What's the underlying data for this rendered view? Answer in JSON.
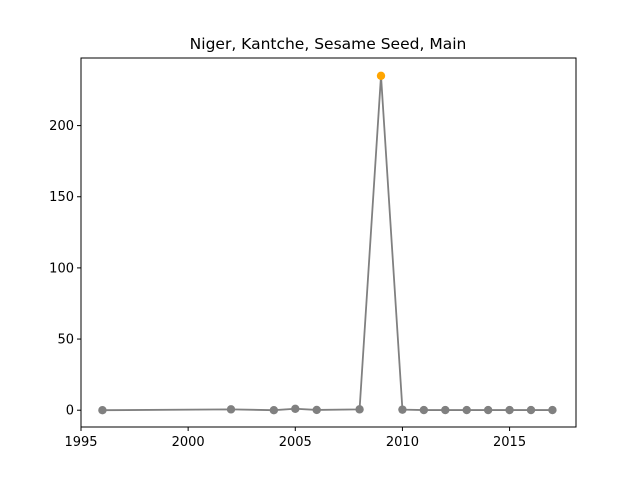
{
  "chart_data": {
    "type": "line",
    "title": "Niger, Kantche, Sesame Seed, Main",
    "xlabel": "",
    "ylabel": "",
    "xlim": [
      1995,
      2018.1
    ],
    "ylim": [
      -11.8,
      247.5
    ],
    "x_ticks": [
      1995,
      2000,
      2005,
      2010,
      2015
    ],
    "y_ticks": [
      0,
      50,
      100,
      150,
      200
    ],
    "grid": false,
    "legend": false,
    "series": [
      {
        "color": "#808080",
        "x": [
          1996,
          2002,
          2004,
          2005,
          2006,
          2008,
          2009,
          2010,
          2011,
          2012,
          2013,
          2014,
          2015,
          2016,
          2017
        ],
        "values": [
          0,
          0.6,
          0,
          1.0,
          0.2,
          0.6,
          235,
          0.4,
          0.1,
          0.1,
          0.1,
          0.1,
          0.1,
          0.1,
          0.1
        ]
      }
    ],
    "highlight": {
      "x": 2009,
      "value": 235,
      "color": "#ffa500"
    }
  }
}
